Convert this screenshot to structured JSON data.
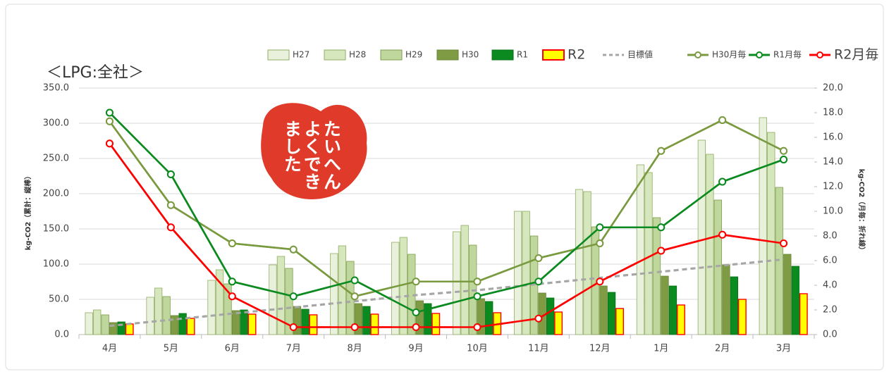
{
  "chart_data": {
    "type": "bar",
    "title": "＜LPG:全社＞",
    "stamp_text": [
      "たいへん",
      "よくでき",
      "ました"
    ],
    "y_label": "kg-CO2（累計：縦棒）",
    "y2_label": "kg-CO2（月毎：折れ線）",
    "categories": [
      "4月",
      "5月",
      "6月",
      "7月",
      "8月",
      "9月",
      "10月",
      "11月",
      "12月",
      "1月",
      "2月",
      "3月"
    ],
    "ylim": [
      0,
      350
    ],
    "yticks": [
      {
        "value": 0,
        "label": "0.0"
      },
      {
        "value": 50,
        "label": "50.0"
      },
      {
        "value": 100,
        "label": "100.0"
      },
      {
        "value": 150,
        "label": "150.0"
      },
      {
        "value": 200,
        "label": "200.0"
      },
      {
        "value": 250,
        "label": "250.0"
      },
      {
        "value": 300,
        "label": "300.0"
      },
      {
        "value": 350,
        "label": "350.0"
      }
    ],
    "y2lim": [
      0,
      20
    ],
    "y2ticks": [
      {
        "value": 0,
        "label": "0.0"
      },
      {
        "value": 2,
        "label": "2.0"
      },
      {
        "value": 4,
        "label": "4.0"
      },
      {
        "value": 6,
        "label": "6.0"
      },
      {
        "value": 8,
        "label": "8.0"
      },
      {
        "value": 10,
        "label": "10.0"
      },
      {
        "value": 12,
        "label": "12.0"
      },
      {
        "value": 14,
        "label": "14.0"
      },
      {
        "value": 16,
        "label": "16.0"
      },
      {
        "value": 18,
        "label": "18.0"
      },
      {
        "value": 20,
        "label": "20.0"
      }
    ],
    "legend": "top",
    "series": [
      {
        "name": "H27",
        "type": "bar",
        "color": "#e9f1dc",
        "border": "#8fae62",
        "values": [
          31,
          53,
          77,
          99,
          115,
          131,
          146,
          175,
          206,
          241,
          276,
          308
        ]
      },
      {
        "name": "H28",
        "type": "bar",
        "color": "#d6e6bd",
        "border": "#8fae62",
        "values": [
          35,
          66,
          92,
          111,
          126,
          138,
          155,
          175,
          203,
          230,
          256,
          287
        ]
      },
      {
        "name": "H29",
        "type": "bar",
        "color": "#bfd69c",
        "border": "#7f9e50",
        "values": [
          28,
          54,
          72,
          94,
          104,
          114,
          127,
          140,
          153,
          166,
          191,
          209
        ]
      },
      {
        "name": "H30",
        "type": "bar",
        "color": "#7f9c45",
        "border": "#6a8638",
        "values": [
          17,
          27,
          34,
          40,
          44,
          48,
          51,
          59,
          69,
          83,
          99,
          114
        ]
      },
      {
        "name": "R1",
        "type": "bar",
        "color": "#0b8a1f",
        "border": "#087018",
        "values": [
          18,
          30,
          35,
          36,
          40,
          44,
          47,
          52,
          60,
          69,
          82,
          97
        ]
      },
      {
        "name": "R2",
        "type": "bar",
        "color": "#ffff00",
        "border": "#ff0000",
        "values": [
          15,
          23,
          29,
          28,
          29,
          30,
          31,
          32,
          37,
          42,
          50,
          58
        ]
      },
      {
        "name": "目標値",
        "type": "dashed",
        "axis": "y2",
        "color": "#a6a6a6",
        "values": [
          0.7,
          1.2,
          1.7,
          2.2,
          2.7,
          3.2,
          3.6,
          4.1,
          4.6,
          5.1,
          5.6,
          6.1
        ]
      },
      {
        "name": "H30月毎",
        "type": "line",
        "axis": "y2",
        "color": "#7a9a40",
        "values": [
          17.3,
          10.5,
          7.4,
          6.9,
          3.1,
          4.3,
          4.3,
          6.2,
          7.4,
          14.9,
          17.4,
          14.9
        ]
      },
      {
        "name": "R1月毎",
        "type": "line",
        "axis": "y2",
        "color": "#0b8a1f",
        "values": [
          18.0,
          13.0,
          4.3,
          3.1,
          4.4,
          1.8,
          3.1,
          4.3,
          8.7,
          8.7,
          12.4,
          14.2
        ]
      },
      {
        "name": "R2月毎",
        "type": "line",
        "axis": "y2",
        "color": "#ff0000",
        "values": [
          15.5,
          8.7,
          3.1,
          0.6,
          0.6,
          0.6,
          0.6,
          1.3,
          4.3,
          6.8,
          8.1,
          7.4
        ]
      }
    ]
  }
}
